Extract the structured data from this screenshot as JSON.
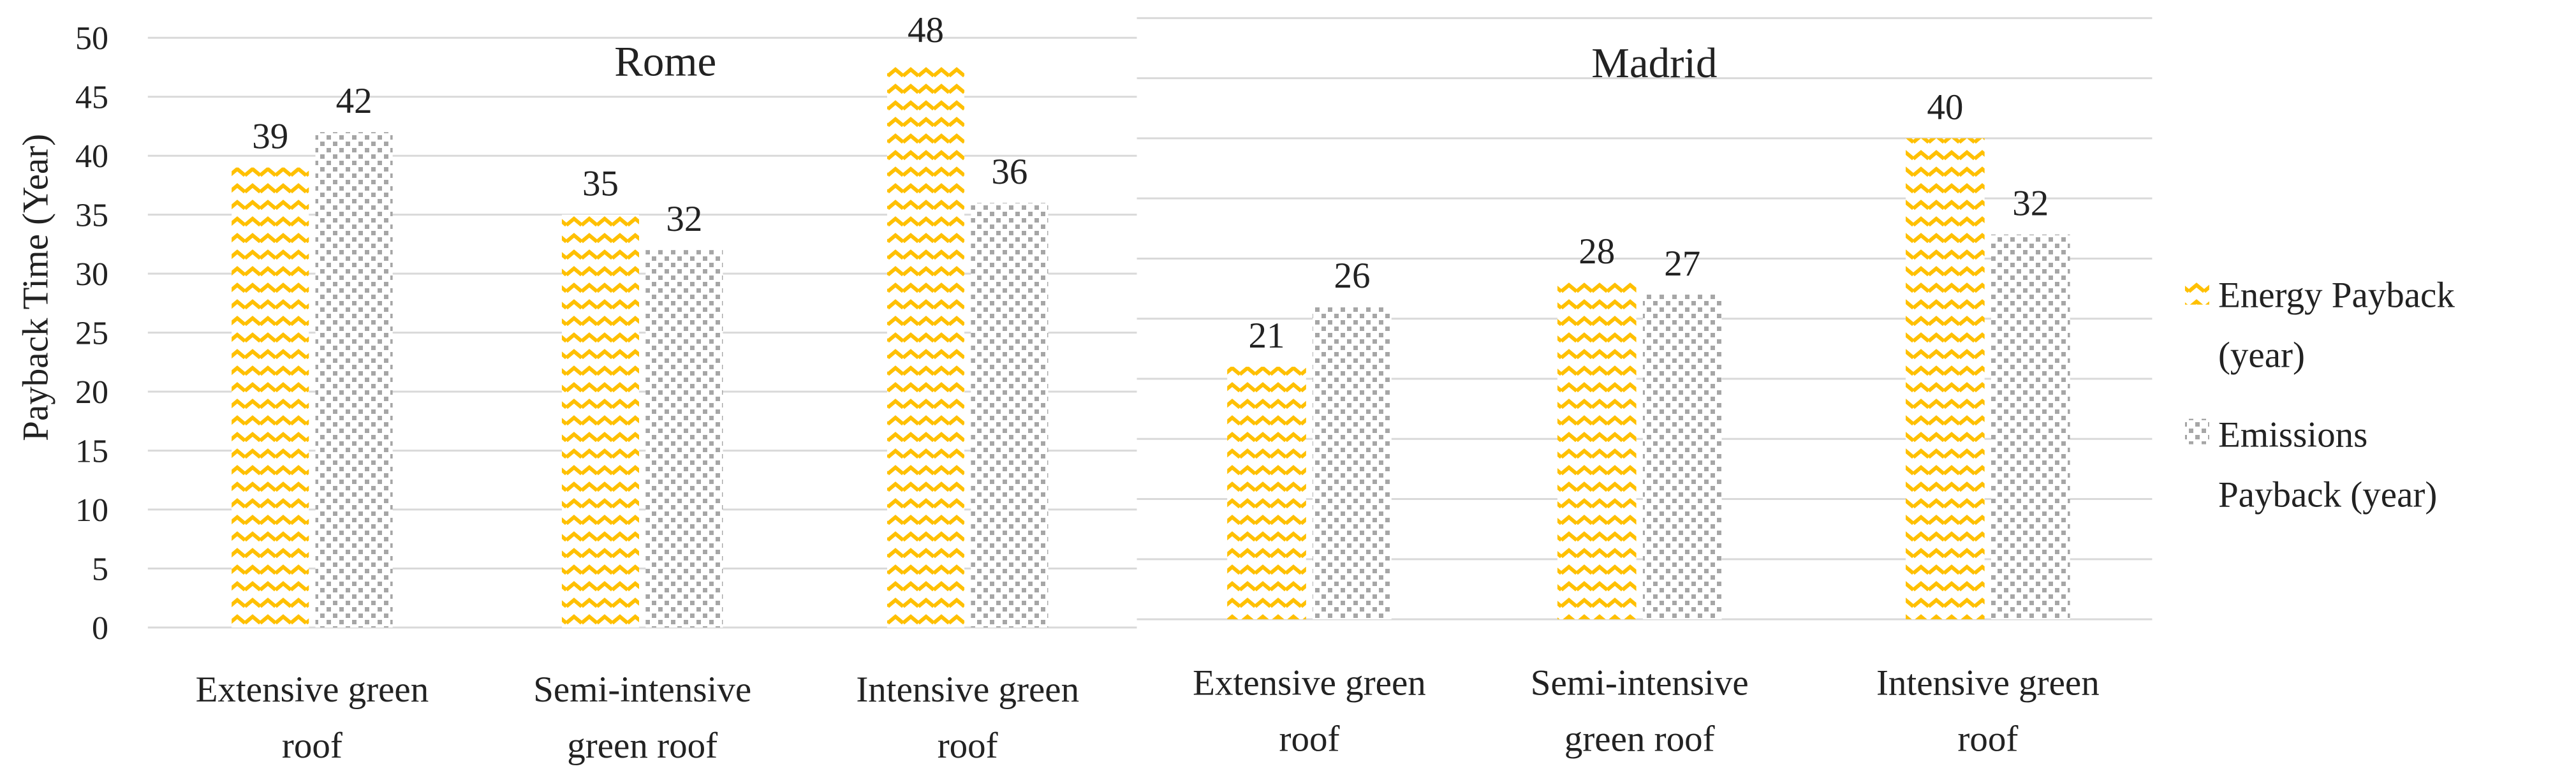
{
  "chart_data": [
    {
      "type": "bar",
      "title": "Rome",
      "ylabel": "Payback Time (Year)",
      "ylim": [
        0,
        50
      ],
      "yticks": [
        0,
        5,
        10,
        15,
        20,
        25,
        30,
        35,
        40,
        45,
        50
      ],
      "grid": true,
      "categories": [
        "Extensive green roof",
        "Semi-intensive green roof",
        "Intensive green roof"
      ],
      "series": [
        {
          "name": "Energy Payback (year)",
          "values": [
            39,
            35,
            48
          ]
        },
        {
          "name": "Emissions Payback (year)",
          "values": [
            42,
            32,
            36
          ]
        }
      ]
    },
    {
      "type": "bar",
      "title": "Madrid",
      "ylim": [
        0,
        50
      ],
      "grid": true,
      "categories": [
        "Extensive green roof",
        "Semi-intensive green roof",
        "Intensive green roof"
      ],
      "series": [
        {
          "name": "Energy Payback (year)",
          "values": [
            21,
            28,
            40
          ]
        },
        {
          "name": "Emissions Payback (year)",
          "values": [
            26,
            27,
            32
          ]
        }
      ]
    }
  ],
  "legend": {
    "position": "right",
    "items": [
      {
        "label_lines": [
          "Energy Payback",
          "(year)"
        ],
        "color": "#FFC000",
        "pattern": "zigzag"
      },
      {
        "label_lines": [
          "Emissions",
          "Payback (year)"
        ],
        "color": "#A6A6A6",
        "pattern": "dots"
      }
    ]
  }
}
